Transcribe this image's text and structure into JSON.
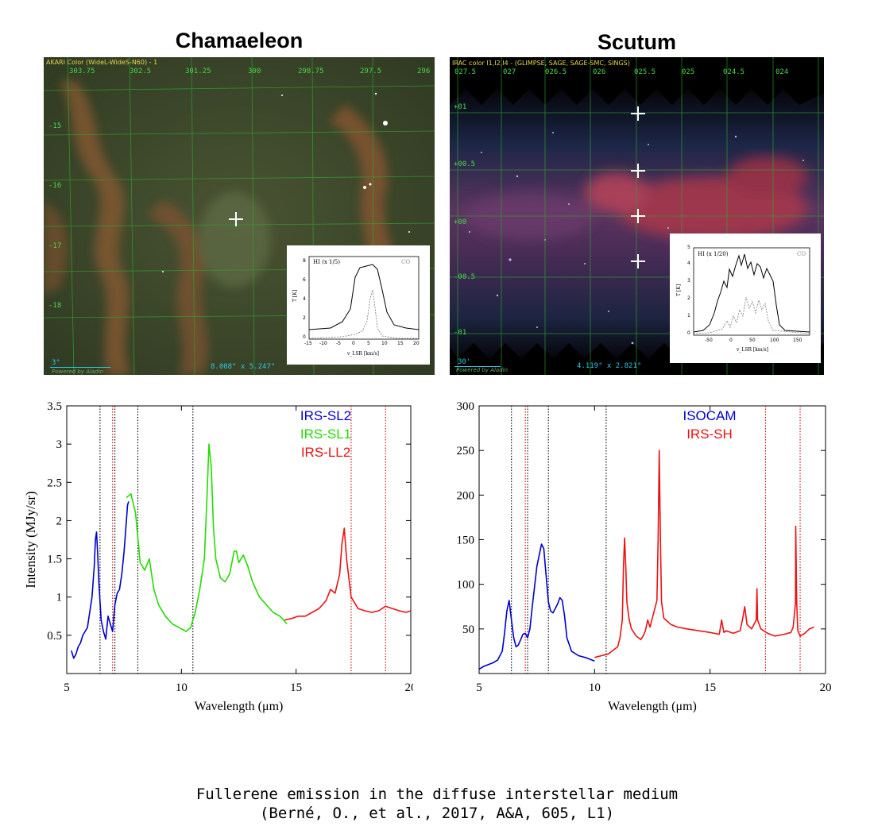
{
  "figure": {
    "left_title": "Chamaeleon",
    "right_title": "Scutum",
    "caption_line1": "Fullerene emission in the diffuse interstellar medium",
    "caption_line2": "(Berné, O., et al., 2017, A&A, 605, L1)"
  },
  "images": {
    "left": {
      "header": "AKARI Color (WideL-WideS-N60) - 1",
      "ra_ticks": [
        "303.75",
        "302.5",
        "301.25",
        "300",
        "298.75",
        "297.5",
        "296"
      ],
      "dec_ticks": [
        "-15",
        "-16",
        "-17",
        "-18"
      ],
      "fov": "8.008° x 5.247°",
      "scale": "3°",
      "credit": "Powered by Aladin",
      "inset": {
        "hi_label": "HI (x 1/5)",
        "co_label": "CO",
        "ylabel": "T [K]",
        "xlabel": "v_LSR [km/s]",
        "x_ticks": [
          "-15",
          "-10",
          "-5",
          "0",
          "5",
          "10",
          "15",
          "20"
        ],
        "y_ticks": [
          "0",
          "2",
          "4",
          "6",
          "8"
        ]
      }
    },
    "right": {
      "header": "IRAC color I1,I2,I4 - (GLIMPSE, SAGE, SAGE-SMC, SINGS)",
      "ra_ticks": [
        "027.5",
        "027",
        "026.5",
        "026",
        "025.5",
        "025",
        "024.5",
        "024"
      ],
      "dec_ticks": [
        "+01",
        "+00.5",
        "+00",
        "-00.5",
        "-01"
      ],
      "fov": "4.119° x 2.821°",
      "scale": "30'",
      "credit": "Powered by Aladin",
      "inset": {
        "hi_label": "HI (x 1/20)",
        "co_label": "CO",
        "ylabel": "T [K]",
        "xlabel": "v_LSR [km/s]",
        "x_ticks": [
          "-50",
          "0",
          "50",
          "100",
          "150"
        ],
        "y_ticks": [
          "0",
          "1",
          "2",
          "3",
          "4",
          "5"
        ]
      }
    }
  },
  "chart_data": [
    {
      "type": "line",
      "xlabel": "Wavelength (μm)",
      "ylabel": "Intensity (MJy/sr)",
      "xlim": [
        5,
        20
      ],
      "ylim": [
        0,
        3.5
      ],
      "x_ticks": [
        "5",
        "10",
        "15",
        "20"
      ],
      "y_ticks": [
        "0.5",
        "1",
        "1.5",
        "2",
        "2.5",
        "3",
        "3.5"
      ],
      "vlines": [
        {
          "x": 6.45,
          "color": "#000000"
        },
        {
          "x": 7.0,
          "color": "#d10000"
        },
        {
          "x": 7.1,
          "color": "#000000"
        },
        {
          "x": 8.1,
          "color": "#000000"
        },
        {
          "x": 10.5,
          "color": "#000000"
        },
        {
          "x": 17.4,
          "color": "#d10000"
        },
        {
          "x": 18.9,
          "color": "#d10000"
        }
      ],
      "series": [
        {
          "name": "IRS-SL2",
          "color": "#0000cc",
          "x": [
            5.2,
            5.3,
            5.4,
            5.5,
            5.6,
            5.7,
            5.8,
            5.9,
            6.0,
            6.1,
            6.2,
            6.25,
            6.3,
            6.35,
            6.4,
            6.5,
            6.6,
            6.7,
            6.8,
            6.9,
            7.0,
            7.1,
            7.2,
            7.3,
            7.4,
            7.5,
            7.6,
            7.65,
            7.7
          ],
          "y": [
            0.3,
            0.2,
            0.25,
            0.35,
            0.4,
            0.5,
            0.55,
            0.6,
            0.8,
            1.0,
            1.4,
            1.75,
            1.85,
            1.55,
            1.2,
            0.7,
            0.55,
            0.45,
            0.75,
            0.65,
            0.55,
            0.9,
            1.05,
            1.1,
            1.3,
            1.6,
            2.0,
            2.2,
            2.25
          ]
        },
        {
          "name": "IRS-SL1",
          "color": "#22dd00",
          "x": [
            7.6,
            7.8,
            8.0,
            8.2,
            8.4,
            8.6,
            8.8,
            9.0,
            9.3,
            9.6,
            9.9,
            10.2,
            10.4,
            10.6,
            10.8,
            11.0,
            11.1,
            11.2,
            11.3,
            11.4,
            11.5,
            11.7,
            11.9,
            12.1,
            12.3,
            12.4,
            12.5,
            12.7,
            12.9,
            13.1,
            13.4,
            13.7,
            14.0,
            14.3,
            14.6
          ],
          "y": [
            2.3,
            2.35,
            2.1,
            1.45,
            1.35,
            1.5,
            1.1,
            0.9,
            0.75,
            0.65,
            0.6,
            0.55,
            0.6,
            0.8,
            1.1,
            1.5,
            2.2,
            3.0,
            2.7,
            1.9,
            1.5,
            1.25,
            1.2,
            1.3,
            1.6,
            1.6,
            1.45,
            1.55,
            1.4,
            1.2,
            1.0,
            0.9,
            0.8,
            0.75,
            0.65
          ]
        },
        {
          "name": "IRS-LL2",
          "color": "#ee1111",
          "x": [
            14.5,
            14.8,
            15.1,
            15.4,
            15.7,
            16.0,
            16.3,
            16.5,
            16.7,
            16.9,
            17.0,
            17.1,
            17.2,
            17.4,
            17.7,
            18.0,
            18.3,
            18.6,
            18.9,
            19.2,
            19.5,
            19.8,
            20.0
          ],
          "y": [
            0.7,
            0.72,
            0.75,
            0.75,
            0.8,
            0.85,
            0.95,
            1.1,
            1.05,
            1.3,
            1.7,
            1.9,
            1.5,
            1.0,
            0.85,
            0.82,
            0.8,
            0.82,
            0.88,
            0.85,
            0.82,
            0.8,
            0.82
          ]
        }
      ]
    },
    {
      "type": "line",
      "xlabel": "Wavelength (μm)",
      "ylabel": "",
      "xlim": [
        5,
        20
      ],
      "ylim": [
        0,
        300
      ],
      "x_ticks": [
        "5",
        "10",
        "15",
        "20"
      ],
      "y_ticks": [
        "50",
        "100",
        "150",
        "200",
        "250",
        "300"
      ],
      "vlines": [
        {
          "x": 6.4,
          "color": "#000000"
        },
        {
          "x": 7.0,
          "color": "#d10000"
        },
        {
          "x": 7.1,
          "color": "#000000"
        },
        {
          "x": 8.0,
          "color": "#000000"
        },
        {
          "x": 10.5,
          "color": "#000000"
        },
        {
          "x": 17.4,
          "color": "#d10000"
        },
        {
          "x": 18.9,
          "color": "#d10000"
        }
      ],
      "series": [
        {
          "name": "ISOCAM",
          "color": "#0000cc",
          "x": [
            5.0,
            5.2,
            5.4,
            5.6,
            5.8,
            6.0,
            6.1,
            6.2,
            6.3,
            6.4,
            6.5,
            6.6,
            6.7,
            6.8,
            6.9,
            7.0,
            7.1,
            7.2,
            7.3,
            7.5,
            7.7,
            7.8,
            7.9,
            8.0,
            8.1,
            8.2,
            8.4,
            8.5,
            8.6,
            8.7,
            8.8,
            9.0,
            9.3,
            9.6,
            9.9,
            10.0
          ],
          "y": [
            5,
            8,
            10,
            12,
            15,
            25,
            45,
            70,
            82,
            60,
            40,
            30,
            32,
            38,
            44,
            45,
            40,
            50,
            75,
            120,
            145,
            140,
            110,
            80,
            70,
            68,
            78,
            85,
            82,
            65,
            40,
            25,
            20,
            18,
            15,
            14
          ]
        },
        {
          "name": "IRS-SH",
          "color": "#ee1111",
          "x": [
            10.0,
            10.3,
            10.6,
            10.8,
            11.0,
            11.1,
            11.2,
            11.25,
            11.3,
            11.35,
            11.4,
            11.5,
            11.6,
            11.8,
            12.0,
            12.1,
            12.2,
            12.3,
            12.4,
            12.5,
            12.6,
            12.7,
            12.75,
            12.8,
            12.85,
            12.9,
            13.0,
            13.3,
            13.6,
            14.0,
            14.5,
            15.0,
            15.4,
            15.5,
            15.6,
            15.7,
            16.0,
            16.3,
            16.4,
            16.5,
            16.6,
            16.8,
            17.0,
            17.03,
            17.06,
            17.2,
            17.5,
            17.8,
            18.2,
            18.5,
            18.6,
            18.7,
            18.71,
            18.75,
            18.8,
            18.9,
            19.1,
            19.3,
            19.5
          ],
          "y": [
            18,
            20,
            22,
            26,
            30,
            40,
            60,
            120,
            152,
            120,
            80,
            60,
            50,
            42,
            38,
            42,
            48,
            60,
            52,
            62,
            72,
            82,
            150,
            250,
            150,
            80,
            62,
            55,
            52,
            50,
            48,
            46,
            44,
            60,
            46,
            48,
            45,
            48,
            60,
            75,
            55,
            50,
            60,
            95,
            60,
            50,
            45,
            42,
            44,
            46,
            52,
            80,
            165,
            80,
            48,
            42,
            45,
            50,
            52
          ]
        }
      ]
    }
  ]
}
